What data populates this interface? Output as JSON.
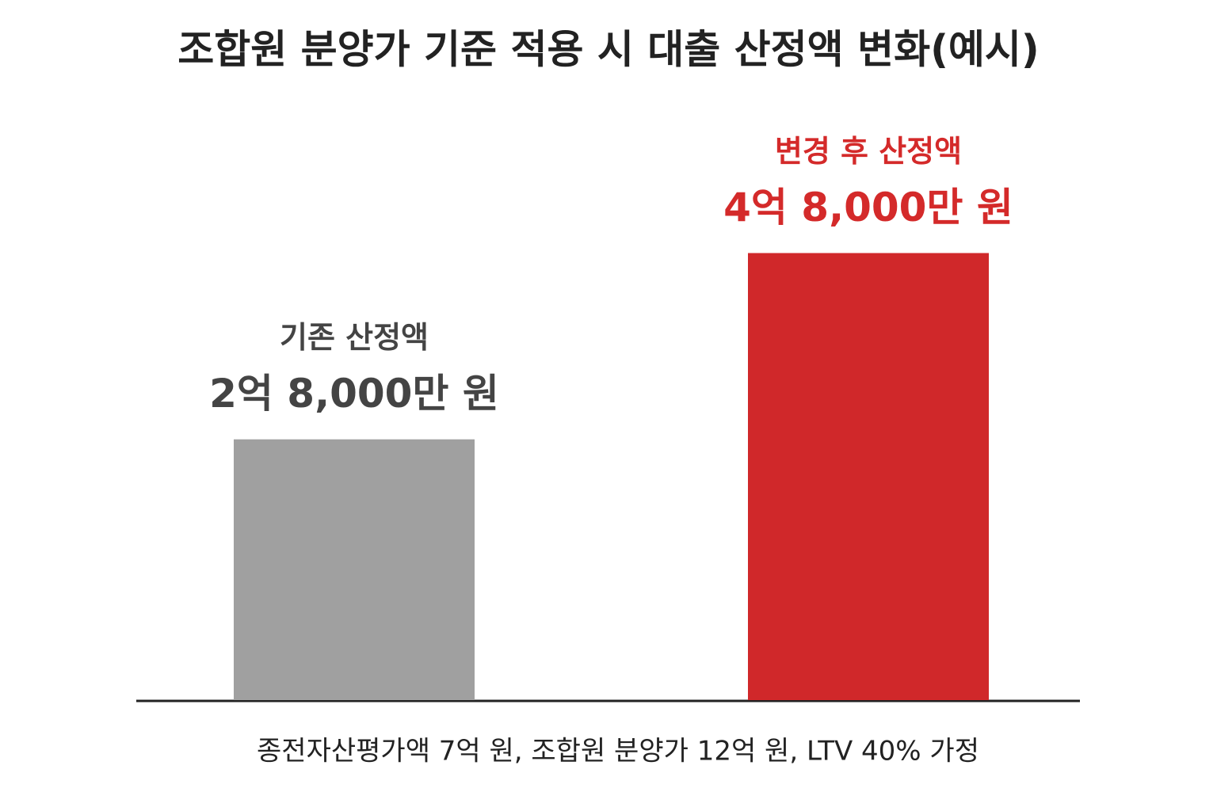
{
  "chart_data": {
    "type": "bar",
    "title": "조합원 분양가 기준 적용 시 대출 산정액 변화(예시)",
    "categories": [
      "기존 산정액",
      "변경 후 산정액"
    ],
    "values": [
      280000000,
      480000000
    ],
    "value_labels": [
      "2억 8,000만 원",
      "4억 8,000만 원"
    ],
    "colors": [
      "#a0a0a0",
      "#d0282a"
    ],
    "label_colors": [
      "#444444",
      "#d42a2a"
    ],
    "ylim": [
      0,
      500000000
    ],
    "note": "종전자산평가액 7억 원, 조합원 분양가 12억 원, LTV 40% 가정"
  }
}
